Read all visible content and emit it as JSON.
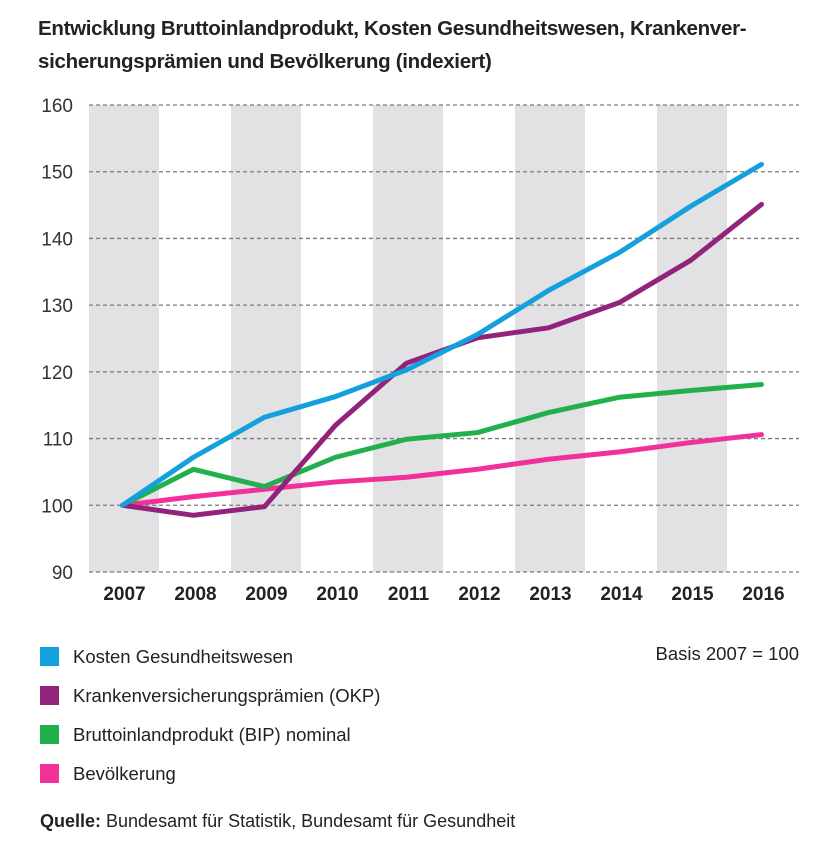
{
  "title": "Entwicklung Bruttoinlandprodukt, Kosten Gesundheitswesen, Krankenver-sicherungsprämien und Bevölkerung (indexiert)",
  "title_lines": [
    "Entwicklung Bruttoinlandprodukt, Kosten Gesundheitswesen, Krankenver-",
    "sicherungsprämien und Bevölkerung (indexiert)"
  ],
  "basis_note": "Basis 2007 = 100",
  "source": {
    "label": "Quelle:",
    "text": " Bundesamt für Statistik, Bundesamt für Gesundheit"
  },
  "colors": {
    "band": "#e2e2e4",
    "grid": "#7a7a7a"
  },
  "chart_data": {
    "type": "line",
    "title": "Entwicklung Bruttoinlandprodukt, Kosten Gesundheitswesen, Krankenversicherungsprämien und Bevölkerung (indexiert)",
    "xlabel": "",
    "ylabel": "",
    "categories": [
      "2007",
      "2008",
      "2009",
      "2010",
      "2011",
      "2012",
      "2013",
      "2014",
      "2015",
      "2016"
    ],
    "ylim": [
      90,
      160
    ],
    "yticks": [
      90,
      100,
      110,
      120,
      130,
      140,
      150,
      160
    ],
    "grid": true,
    "alternating_bands": true,
    "legend_position": "bottom-left",
    "annotations": [
      "Basis 2007 = 100"
    ],
    "series": [
      {
        "name": "Kosten Gesundheitswesen",
        "color": "#13a0dc",
        "values": [
          100,
          107.2,
          113.2,
          116.3,
          120.3,
          125.6,
          132.2,
          137.9,
          144.8,
          151.1
        ]
      },
      {
        "name": "Krankenversicherungsprämien (OKP)",
        "color": "#92237b",
        "values": [
          100,
          98.5,
          99.8,
          112.0,
          121.3,
          125.1,
          126.6,
          130.4,
          136.7,
          145.1
        ]
      },
      {
        "name": "Bruttoinlandprodukt (BIP) nominal",
        "color": "#22b04b",
        "values": [
          100,
          105.4,
          102.8,
          107.2,
          109.9,
          110.9,
          113.9,
          116.2,
          117.2,
          118.1
        ]
      },
      {
        "name": "Bevölkerung",
        "color": "#f2309a",
        "values": [
          100,
          101.3,
          102.4,
          103.5,
          104.2,
          105.4,
          106.9,
          108.0,
          109.4,
          110.6
        ]
      }
    ]
  }
}
